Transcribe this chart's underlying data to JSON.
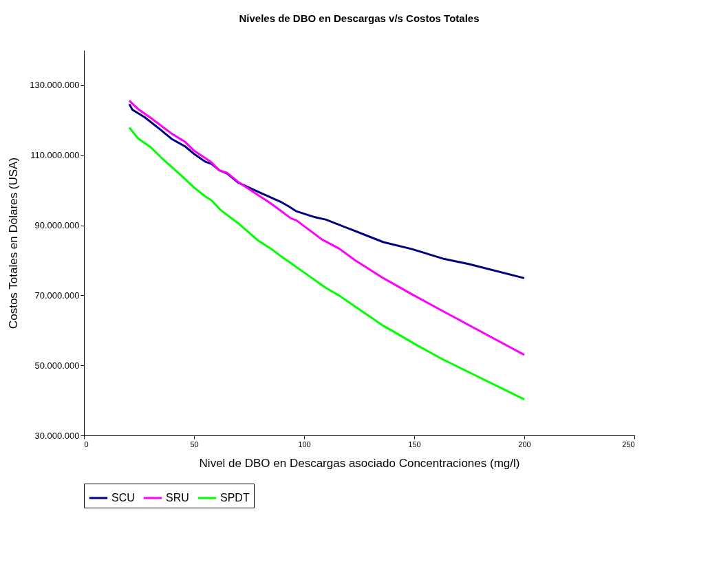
{
  "chart_data": {
    "type": "line",
    "title": "Niveles de DBO en Descargas v/s Costos Totales",
    "xlabel": "Nivel de DBO en Descargas asociado Concentraciones (mg/l)",
    "ylabel": "Costos Totales en Dólares (USA)",
    "xlim": [
      0,
      250
    ],
    "xticks": [
      0,
      50,
      100,
      150,
      200,
      250
    ],
    "ylim": [
      30000000,
      140000000
    ],
    "yticks": [
      {
        "value": 30000000,
        "label": "30.000.000"
      },
      {
        "value": 50000000,
        "label": "50.000.000"
      },
      {
        "value": 70000000,
        "label": "70.000.000"
      },
      {
        "value": 90000000,
        "label": "90.000.000"
      },
      {
        "value": 110000000,
        "label": "110.000.000"
      },
      {
        "value": 130000000,
        "label": "130.000.000"
      }
    ],
    "grid": false,
    "legend": "bottom",
    "marker": "none",
    "line_style": "solid",
    "series": [
      {
        "name": "SCU",
        "color": "#000080",
        "x": [
          20.6,
          22,
          27.5,
          35,
          40,
          46,
          50,
          55,
          58,
          61.5,
          65,
          70,
          79,
          90,
          93,
          96.5,
          105,
          110,
          136,
          149,
          163,
          175,
          200
        ],
        "values": [
          124600000,
          123000000,
          120900000,
          117200000,
          114600000,
          112500000,
          110400000,
          108200000,
          107500000,
          105700000,
          104800000,
          102200000,
          99600000,
          96500000,
          95400000,
          94000000,
          92300000,
          91600000,
          85200000,
          83200000,
          80500000,
          78900000,
          74900000
        ]
      },
      {
        "name": "SRU",
        "color": "#ff00ff",
        "x": [
          20.6,
          25,
          30.5,
          40,
          46,
          50,
          57.5,
          61.5,
          65,
          70,
          85,
          94,
          96.5,
          108,
          116,
          123,
          136,
          149,
          163,
          200
        ],
        "values": [
          125600000,
          123000000,
          120600000,
          116100000,
          113800000,
          111300000,
          108200000,
          105700000,
          105000000,
          102400000,
          96200000,
          92000000,
          91400000,
          86000000,
          83300000,
          80100000,
          74900000,
          70300000,
          65500000,
          53000000
        ]
      },
      {
        "name": "SPDT",
        "color": "#00ff00",
        "x": [
          20.6,
          24.6,
          30.5,
          35,
          45.3,
          50,
          55,
          58,
          62,
          70,
          79,
          85,
          89.6,
          94,
          96,
          110,
          116,
          123,
          136,
          143,
          150,
          163,
          200
        ],
        "values": [
          117900000,
          114800000,
          112200000,
          109400000,
          103600000,
          100800000,
          98300000,
          97100000,
          94400000,
          90600000,
          85700000,
          83300000,
          81100000,
          79200000,
          78300000,
          72100000,
          69900000,
          66900000,
          61300000,
          58800000,
          56200000,
          51700000,
          40300000
        ]
      }
    ]
  }
}
